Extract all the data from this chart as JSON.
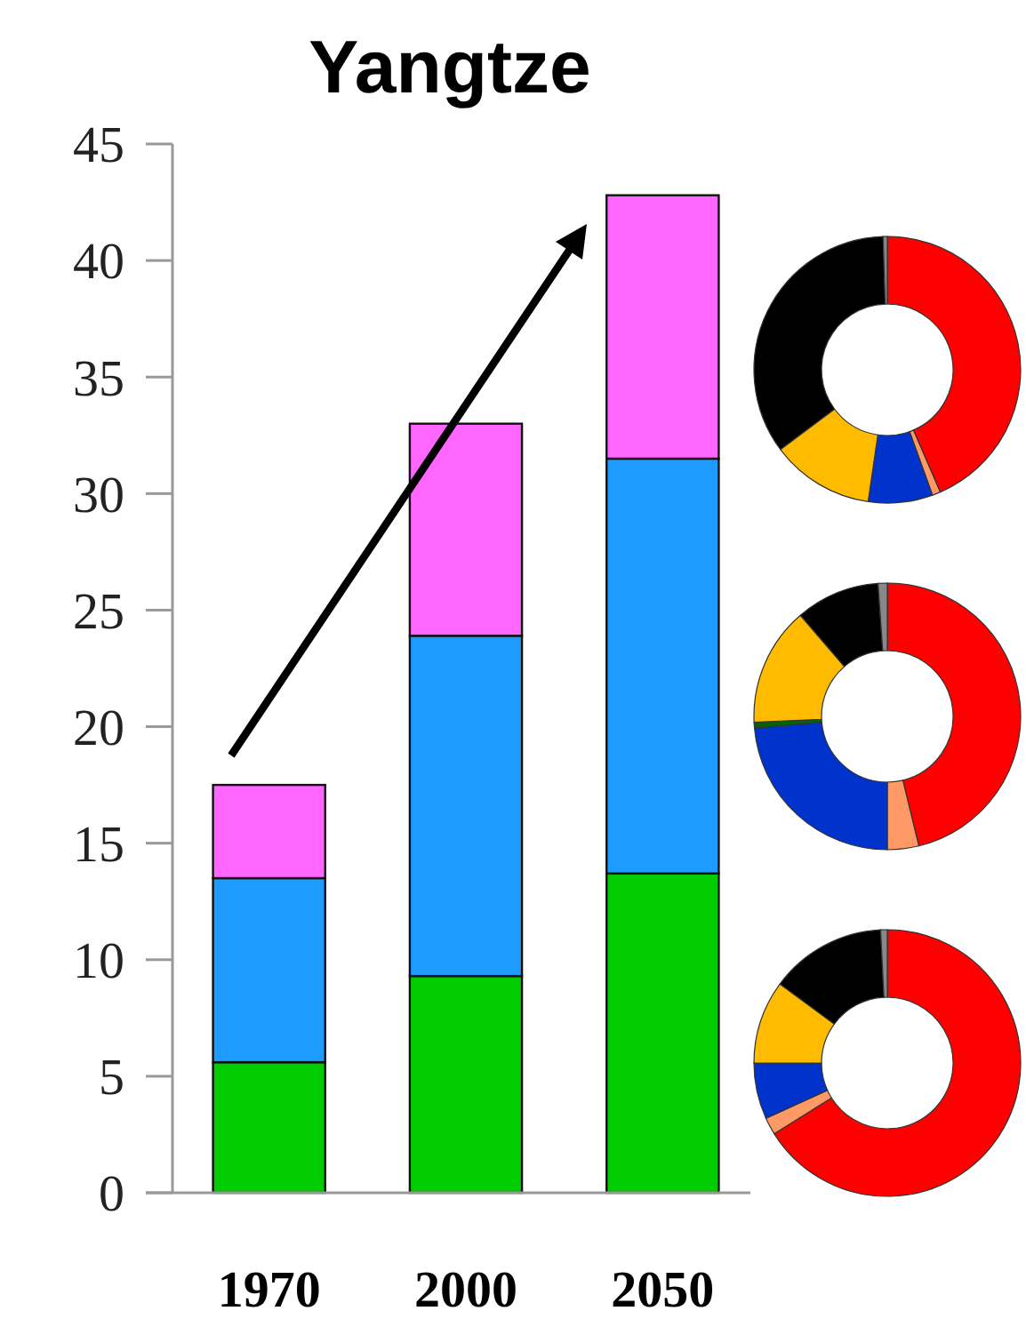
{
  "chart_data": [
    {
      "type": "bar",
      "title": "Yangtze",
      "categories": [
        "1970",
        "2000",
        "2050"
      ],
      "stacked": true,
      "ylim": [
        0,
        45
      ],
      "yticks": [
        0,
        5,
        10,
        15,
        20,
        25,
        30,
        35,
        40,
        45
      ],
      "grid": false,
      "series": [
        {
          "color": "#00cc00",
          "values": [
            5.6,
            9.3,
            13.7
          ]
        },
        {
          "color": "#1e9bff",
          "values": [
            7.9,
            14.6,
            17.8
          ]
        },
        {
          "color": "#ff66ff",
          "values": [
            4.0,
            9.1,
            11.3
          ]
        }
      ]
    },
    {
      "type": "donut",
      "categories": [
        null,
        null,
        null,
        null,
        null,
        null
      ],
      "values": [
        43.5,
        1.0,
        7.8,
        12.5,
        34.7,
        0.5
      ],
      "colors": [
        "#ff0000",
        "#ff9966",
        "#0033cc",
        "#ffbb00",
        "#000000",
        "#888888"
      ]
    },
    {
      "type": "donut",
      "categories": [
        null,
        null,
        null,
        null,
        null,
        null,
        null
      ],
      "values": [
        46.2,
        3.8,
        23.6,
        0.7,
        14.4,
        10.2,
        1.1
      ],
      "colors": [
        "#ff0000",
        "#ff9966",
        "#0033cc",
        "#006600",
        "#ffbb00",
        "#000000",
        "#888888"
      ]
    },
    {
      "type": "donut",
      "categories": [
        null,
        null,
        null,
        null,
        null,
        null
      ],
      "values": [
        66.1,
        2.1,
        6.8,
        10.1,
        14.1,
        0.8
      ],
      "colors": [
        "#ff0000",
        "#ff9966",
        "#0033cc",
        "#ffbb00",
        "#000000",
        "#888888"
      ]
    }
  ]
}
